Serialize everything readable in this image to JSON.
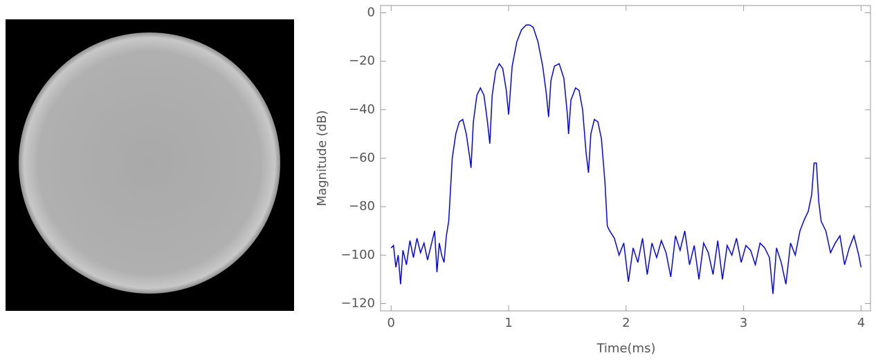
{
  "chart_data": {
    "type": "line",
    "xlabel": "Time(ms)",
    "ylabel": "Magnitude (dB)",
    "x": [
      0,
      0.02,
      0.04,
      0.06,
      0.08,
      0.1,
      0.13,
      0.16,
      0.19,
      0.22,
      0.25,
      0.28,
      0.31,
      0.34,
      0.37,
      0.39,
      0.41,
      0.43,
      0.45,
      0.47,
      0.49,
      0.52,
      0.55,
      0.58,
      0.61,
      0.64,
      0.67,
      0.68,
      0.7,
      0.73,
      0.76,
      0.79,
      0.82,
      0.84,
      0.86,
      0.89,
      0.92,
      0.95,
      0.98,
      1.0,
      1.03,
      1.07,
      1.11,
      1.15,
      1.18,
      1.21,
      1.25,
      1.29,
      1.32,
      1.34,
      1.36,
      1.39,
      1.43,
      1.47,
      1.5,
      1.51,
      1.53,
      1.57,
      1.6,
      1.63,
      1.66,
      1.68,
      1.7,
      1.73,
      1.76,
      1.79,
      1.82,
      1.84,
      1.86,
      1.9,
      1.94,
      1.98,
      2.02,
      2.06,
      2.1,
      2.14,
      2.18,
      2.22,
      2.26,
      2.3,
      2.34,
      2.38,
      2.42,
      2.46,
      2.5,
      2.54,
      2.58,
      2.62,
      2.66,
      2.7,
      2.74,
      2.78,
      2.82,
      2.86,
      2.9,
      2.94,
      2.98,
      3.02,
      3.06,
      3.1,
      3.14,
      3.18,
      3.22,
      3.25,
      3.28,
      3.32,
      3.36,
      3.4,
      3.44,
      3.48,
      3.52,
      3.55,
      3.58,
      3.6,
      3.62,
      3.64,
      3.66,
      3.7,
      3.74,
      3.78,
      3.82,
      3.86,
      3.9,
      3.94,
      3.98,
      4.0
    ],
    "series": [
      {
        "color": "#0000ff",
        "values": [
          -97,
          -96,
          -105,
          -100,
          -112,
          -98,
          -104,
          -94,
          -101,
          -93,
          -99,
          -95,
          -102,
          -96,
          -90,
          -107,
          -95,
          -100,
          -103,
          -92,
          -86,
          -60,
          -50,
          -45,
          -44,
          -50,
          -60,
          -64,
          -45,
          -34,
          -31,
          -34,
          -45,
          -54,
          -34,
          -24,
          -21,
          -23,
          -32,
          -42,
          -22,
          -12,
          -7,
          -5,
          -5,
          -6,
          -12,
          -22,
          -33,
          -43,
          -28,
          -22,
          -21,
          -27,
          -42,
          -50,
          -36,
          -31,
          -32,
          -40,
          -58,
          -66,
          -50,
          -44,
          -45,
          -52,
          -70,
          -88,
          -90,
          -93,
          -100,
          -95,
          -111,
          -97,
          -103,
          -93,
          -108,
          -95,
          -101,
          -94,
          -99,
          -109,
          -92,
          -98,
          -90,
          -104,
          -96,
          -110,
          -95,
          -99,
          -108,
          -94,
          -110,
          -96,
          -100,
          -93,
          -103,
          -96,
          -98,
          -104,
          -95,
          -97,
          -101,
          -116,
          -97,
          -103,
          -112,
          -95,
          -100,
          -90,
          -85,
          -82,
          -75,
          -62,
          -62,
          -78,
          -86,
          -90,
          -99,
          -95,
          -92,
          -104,
          -97,
          -92,
          -100,
          -105
        ]
      }
    ],
    "xlim": [
      -0.09,
      4.08
    ],
    "ylim": [
      -123,
      3
    ],
    "xticks": [
      0,
      1,
      2,
      3,
      4
    ],
    "yticks": [
      0,
      {
        "value": -20,
        "label": "−20"
      },
      {
        "value": -40,
        "label": "−40"
      },
      {
        "value": -60,
        "label": "−60"
      },
      {
        "value": -80,
        "label": "−80"
      },
      {
        "value": -100,
        "label": "−100"
      },
      {
        "value": -120,
        "label": "−120"
      }
    ]
  }
}
